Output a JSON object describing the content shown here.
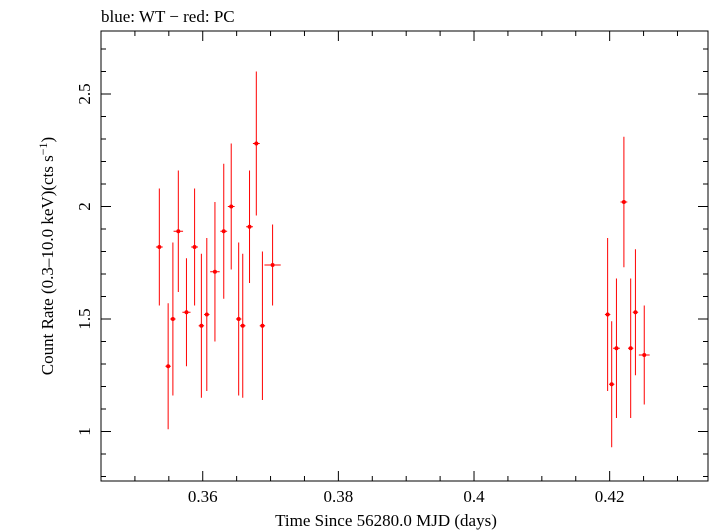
{
  "chart_data": {
    "type": "scatter",
    "title": "blue: WT − red: PC",
    "xlabel": "Time Since 56280.0 MJD (days)",
    "ylabel_main": "Count Rate (0.3–10.0 keV)(cts s",
    "ylabel_sup": "−1",
    "ylabel_close": ")",
    "xlim": [
      0.345,
      0.4345
    ],
    "ylim": [
      0.78,
      2.78
    ],
    "x_ticks": [
      {
        "value": 0.36,
        "label": "0.36"
      },
      {
        "value": 0.38,
        "label": "0.38"
      },
      {
        "value": 0.4,
        "label": "0.4"
      },
      {
        "value": 0.42,
        "label": "0.42"
      }
    ],
    "y_ticks": [
      {
        "value": 1.0,
        "label": "1"
      },
      {
        "value": 1.5,
        "label": "1.5"
      },
      {
        "value": 2.0,
        "label": "2"
      },
      {
        "value": 2.5,
        "label": "2.5"
      }
    ],
    "grid": false,
    "series": [
      {
        "color": "#ff0000",
        "points": [
          {
            "x": 0.3536,
            "y": 1.82,
            "xerr": 0.0005,
            "yerr": 0.26
          },
          {
            "x": 0.3549,
            "y": 1.29,
            "xerr": 0.0004,
            "yerr": 0.28
          },
          {
            "x": 0.3556,
            "y": 1.5,
            "xerr": 0.0004,
            "yerr": 0.34
          },
          {
            "x": 0.3564,
            "y": 1.89,
            "xerr": 0.0007,
            "yerr": 0.27
          },
          {
            "x": 0.3576,
            "y": 1.53,
            "xerr": 0.0006,
            "yerr": 0.24
          },
          {
            "x": 0.3588,
            "y": 1.82,
            "xerr": 0.0005,
            "yerr": 0.26
          },
          {
            "x": 0.3598,
            "y": 1.47,
            "xerr": 0.0004,
            "yerr": 0.32
          },
          {
            "x": 0.3606,
            "y": 1.52,
            "xerr": 0.0004,
            "yerr": 0.34
          },
          {
            "x": 0.3618,
            "y": 1.71,
            "xerr": 0.0007,
            "yerr": 0.31
          },
          {
            "x": 0.3631,
            "y": 1.89,
            "xerr": 0.0005,
            "yerr": 0.3
          },
          {
            "x": 0.3642,
            "y": 2.0,
            "xerr": 0.0005,
            "yerr": 0.28
          },
          {
            "x": 0.3653,
            "y": 1.5,
            "xerr": 0.0004,
            "yerr": 0.34
          },
          {
            "x": 0.3659,
            "y": 1.47,
            "xerr": 0.0004,
            "yerr": 0.32
          },
          {
            "x": 0.3669,
            "y": 1.91,
            "xerr": 0.0005,
            "yerr": 0.25
          },
          {
            "x": 0.3679,
            "y": 2.28,
            "xerr": 0.0005,
            "yerr": 0.32
          },
          {
            "x": 0.3688,
            "y": 1.47,
            "xerr": 0.0004,
            "yerr": 0.33
          },
          {
            "x": 0.3703,
            "y": 1.74,
            "xerr": 0.0012,
            "yerr": 0.18
          },
          {
            "x": 0.4197,
            "y": 1.52,
            "xerr": 0.0004,
            "yerr": 0.34
          },
          {
            "x": 0.4203,
            "y": 1.21,
            "xerr": 0.0004,
            "yerr": 0.28
          },
          {
            "x": 0.421,
            "y": 1.37,
            "xerr": 0.0005,
            "yerr": 0.31
          },
          {
            "x": 0.4221,
            "y": 2.02,
            "xerr": 0.0005,
            "yerr": 0.29
          },
          {
            "x": 0.4231,
            "y": 1.37,
            "xerr": 0.0004,
            "yerr": 0.31
          },
          {
            "x": 0.4238,
            "y": 1.53,
            "xerr": 0.0004,
            "yerr": 0.28
          },
          {
            "x": 0.4251,
            "y": 1.34,
            "xerr": 0.0008,
            "yerr": 0.22
          }
        ]
      }
    ]
  }
}
